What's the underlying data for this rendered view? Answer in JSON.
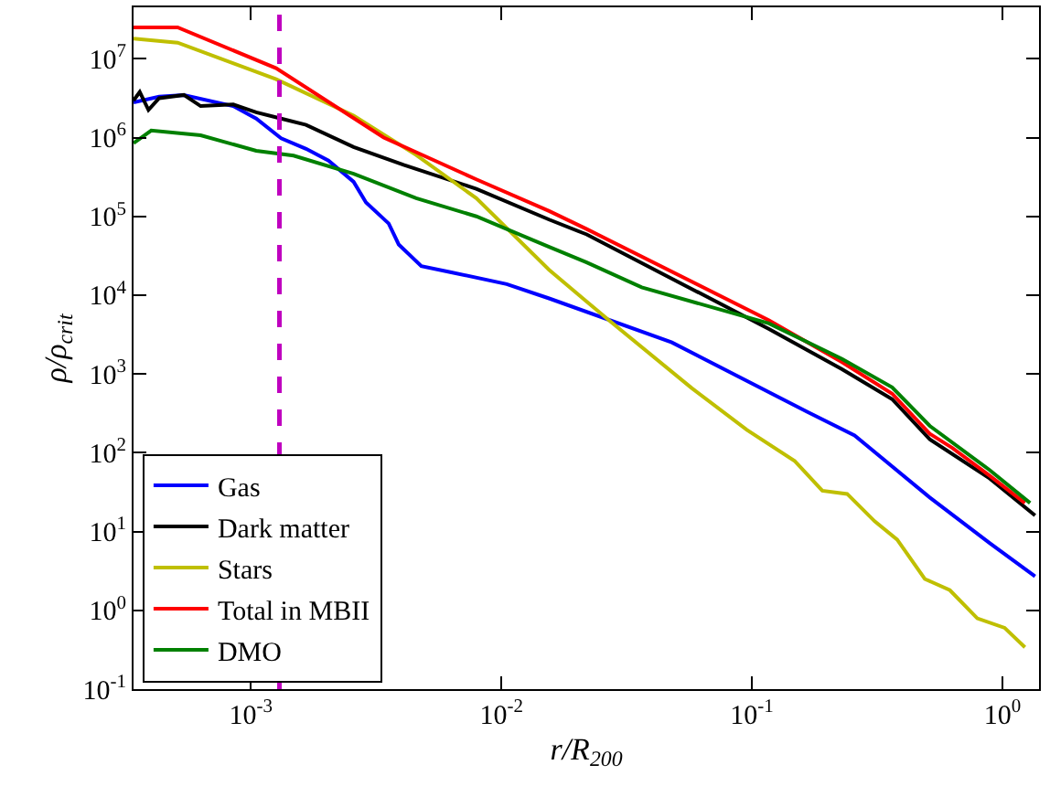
{
  "chart_data": {
    "type": "line",
    "xlabel": "r/R$_{200}$",
    "ylabel": "ρ/ρ$_{crit}$",
    "log": "xy",
    "legend": "bottom left",
    "marker": "none",
    "line_style": "solid",
    "xlim": [
      0.00034,
      1.4
    ],
    "ylim": [
      0.1,
      45000000
    ],
    "xticks": [
      {
        "value": 0.001,
        "label": "10$^{-3}$"
      },
      {
        "value": 0.01,
        "label": "10$^{-2}$"
      },
      {
        "value": 0.1,
        "label": "10$^{-1}$"
      },
      {
        "value": 1,
        "label": "10$^{0}$"
      }
    ],
    "yticks": [
      {
        "value": 0.1,
        "label": "10$^{-1}$"
      },
      {
        "value": 1,
        "label": "10$^{0}$"
      },
      {
        "value": 10,
        "label": "10$^{1}$"
      },
      {
        "value": 100,
        "label": "10$^{2}$"
      },
      {
        "value": 1000,
        "label": "10$^{3}$"
      },
      {
        "value": 10000,
        "label": "10$^{4}$"
      },
      {
        "value": 100000,
        "label": "10$^{5}$"
      },
      {
        "value": 1000000,
        "label": "10$^{6}$"
      },
      {
        "value": 10000000,
        "label": "10$^{7}$"
      }
    ],
    "ref_lines": [
      {
        "axis": "x",
        "value": 0.0013,
        "color": "#bf00bf",
        "line_style": "dashed"
      }
    ],
    "series": [
      {
        "name": "Gas",
        "color": "#0000ff",
        "x": [
          0.00034,
          0.00043,
          0.00054,
          0.00085,
          0.00105,
          0.00132,
          0.00166,
          0.00204,
          0.00257,
          0.00288,
          0.00355,
          0.00389,
          0.00479,
          0.00631,
          0.0105,
          0.0155,
          0.0479,
          0.166,
          0.257,
          0.513,
          0.891,
          1.35
        ],
        "values": [
          2800000,
          3300000,
          3470000,
          2510000,
          1740000,
          980000,
          720000,
          510000,
          275000,
          150000,
          81000,
          44000,
          23400,
          19500,
          13800,
          9100,
          2510,
          331,
          166,
          27,
          7.1,
          2.7
        ]
      },
      {
        "name": "Dark matter",
        "color": "#000000",
        "x": [
          0.00034,
          0.00036,
          0.00039,
          0.00043,
          0.00054,
          0.00063,
          0.00085,
          0.00105,
          0.00132,
          0.00166,
          0.00257,
          0.00407,
          0.00794,
          0.0155,
          0.0219,
          0.117,
          0.229,
          0.363,
          0.513,
          0.891,
          1.35
        ],
        "values": [
          2950000,
          3800000,
          2240000,
          3160000,
          3470000,
          2510000,
          2630000,
          2090000,
          1740000,
          1450000,
          760000,
          450000,
          224000,
          91000,
          59000,
          3720,
          1150,
          479,
          148,
          47,
          16
        ]
      },
      {
        "name": "Stars",
        "color": "#bfbf00",
        "x": [
          0.00034,
          0.00051,
          0.00126,
          0.00257,
          0.00457,
          0.00794,
          0.0155,
          0.0219,
          0.0269,
          0.0575,
          0.0955,
          0.148,
          0.191,
          0.24,
          0.309,
          0.38,
          0.49,
          0.617,
          0.794,
          1.02,
          1.23
        ],
        "values": [
          18000000,
          16000000,
          5500000,
          1900000,
          600000,
          170000,
          21000,
          8300,
          4790,
          661,
          195,
          79,
          33,
          30,
          13.5,
          7.9,
          2.5,
          1.8,
          0.79,
          0.6,
          0.34
        ]
      },
      {
        "name": "Total in MBII",
        "color": "#ff0000",
        "x": [
          0.00034,
          0.00051,
          0.00126,
          0.00339,
          0.00794,
          0.0155,
          0.0219,
          0.117,
          0.229,
          0.363,
          0.513,
          0.631,
          0.891,
          1.23
        ],
        "values": [
          25000000,
          25000000,
          7600000,
          1000000,
          295000,
          117000,
          69000,
          4790,
          1410,
          562,
          174,
          115,
          51,
          23
        ]
      },
      {
        "name": "DMO",
        "color": "#008000",
        "x": [
          0.00034,
          0.0004,
          0.00063,
          0.00105,
          0.00148,
          0.00257,
          0.00457,
          0.00794,
          0.0155,
          0.0219,
          0.0363,
          0.117,
          0.229,
          0.363,
          0.513,
          0.891,
          1.29
        ],
        "values": [
          850000,
          1230000,
          1070000,
          680000,
          590000,
          347000,
          170000,
          100000,
          41000,
          26000,
          12600,
          4370,
          1550,
          676,
          219,
          60,
          23
        ]
      }
    ]
  }
}
